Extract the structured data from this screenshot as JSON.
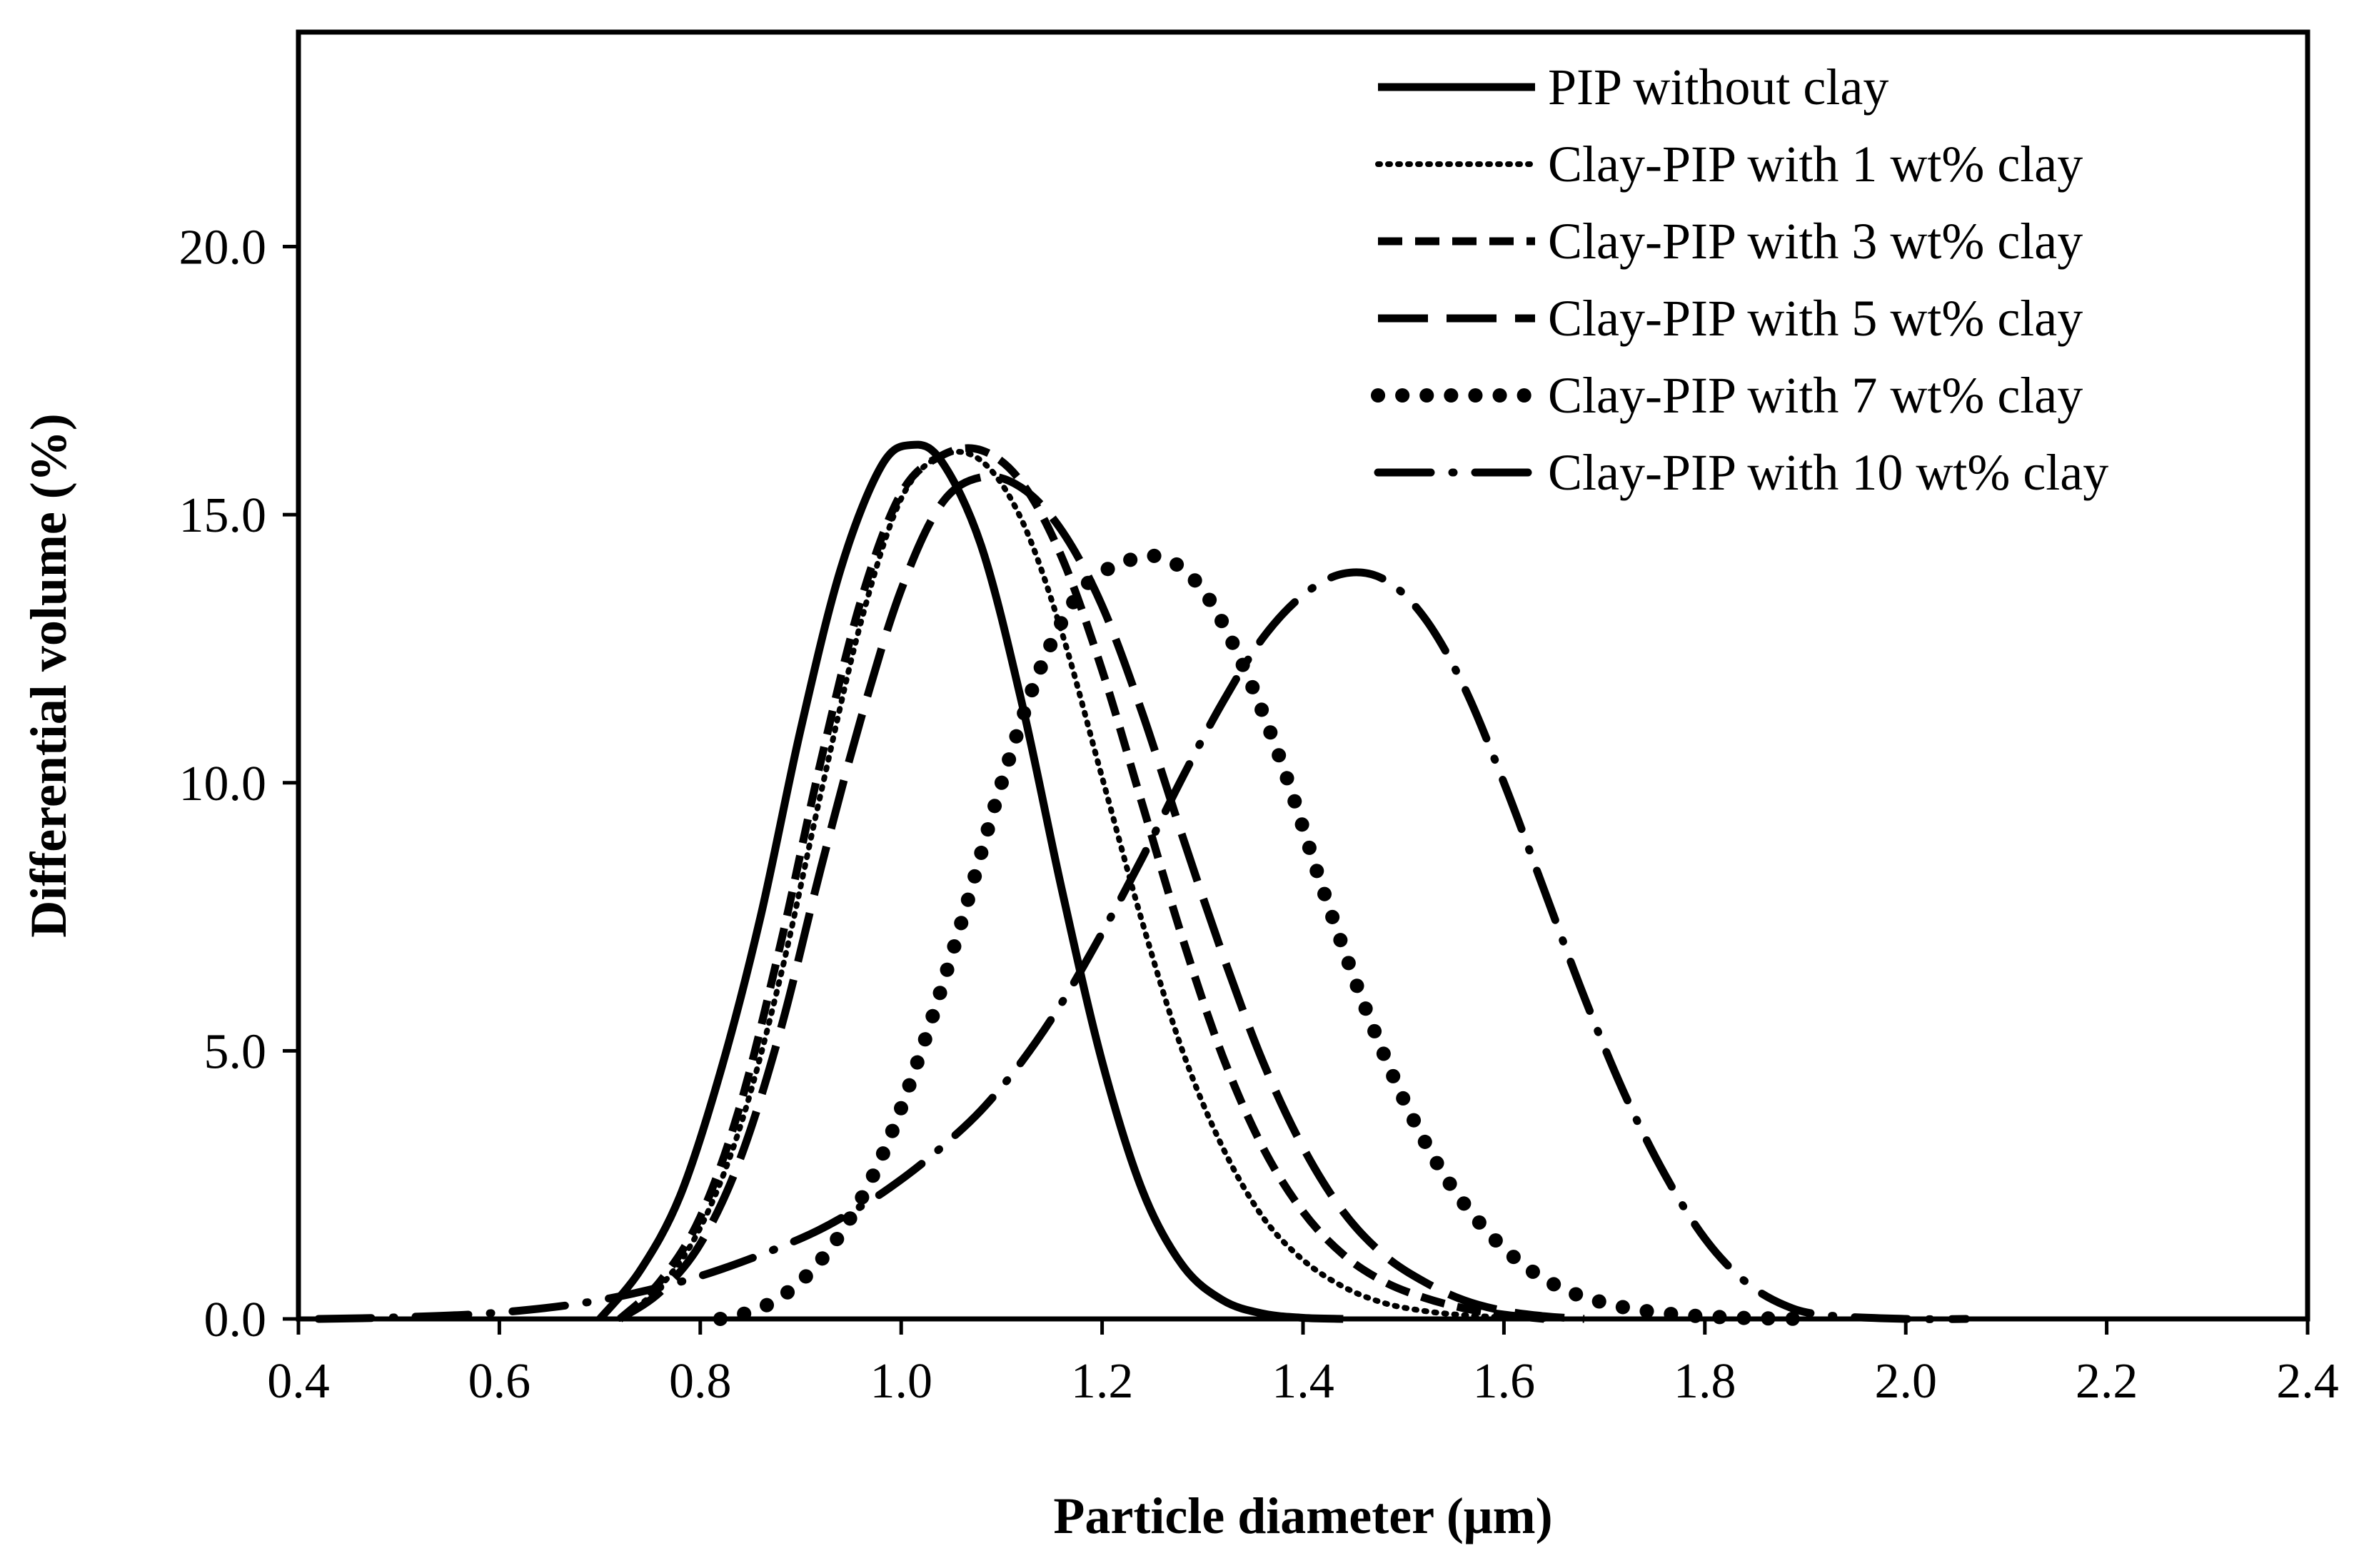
{
  "chart_data": {
    "type": "line",
    "title": "",
    "xlabel": "Particle diameter (μm)",
    "ylabel": "Differential volume (%)",
    "xlim": [
      0.4,
      2.4
    ],
    "ylim": [
      0,
      24
    ],
    "x_ticks": [
      "0.4",
      "0.6",
      "0.8",
      "1.0",
      "1.2",
      "1.4",
      "1.6",
      "1.8",
      "2.0",
      "2.2",
      "2.4"
    ],
    "y_ticks": [
      "0.0",
      "5.0",
      "10.0",
      "15.0",
      "20.0"
    ],
    "legend_position": "top-right",
    "series": [
      {
        "name": "PIP without clay",
        "style": "solid",
        "x": [
          0.7,
          0.74,
          0.78,
          0.82,
          0.86,
          0.9,
          0.94,
          0.98,
          1.01,
          1.04,
          1.08,
          1.12,
          1.16,
          1.2,
          1.24,
          1.28,
          1.32,
          1.36,
          1.4,
          1.44
        ],
        "y": [
          0.0,
          0.9,
          2.3,
          4.6,
          7.5,
          11.0,
          14.0,
          15.9,
          16.3,
          16.0,
          14.4,
          11.5,
          8.0,
          4.8,
          2.4,
          1.0,
          0.35,
          0.1,
          0.02,
          0.0
        ]
      },
      {
        "name": "Clay-PIP with 1 wt% clay",
        "style": "dotted",
        "x": [
          0.72,
          0.76,
          0.8,
          0.84,
          0.88,
          0.92,
          0.96,
          1.0,
          1.04,
          1.08,
          1.12,
          1.16,
          1.2,
          1.24,
          1.28,
          1.32,
          1.36,
          1.4,
          1.44,
          1.48,
          1.52,
          1.56,
          1.6,
          1.64
        ],
        "y": [
          0.0,
          0.6,
          1.7,
          3.6,
          6.4,
          9.8,
          13.0,
          15.3,
          16.1,
          16.0,
          14.9,
          12.8,
          10.1,
          7.4,
          5.0,
          3.2,
          1.9,
          1.1,
          0.6,
          0.3,
          0.15,
          0.07,
          0.03,
          0.0
        ]
      },
      {
        "name": "Clay-PIP with 3 wt% clay",
        "style": "dashed",
        "x": [
          0.72,
          0.76,
          0.8,
          0.84,
          0.88,
          0.92,
          0.96,
          1.0,
          1.04,
          1.08,
          1.12,
          1.16,
          1.2,
          1.24,
          1.28,
          1.32,
          1.36,
          1.4,
          1.44,
          1.48,
          1.52,
          1.56,
          1.6,
          1.64
        ],
        "y": [
          0.0,
          0.7,
          1.9,
          4.0,
          7.0,
          10.4,
          13.4,
          15.4,
          16.1,
          16.2,
          15.6,
          14.2,
          12.1,
          9.6,
          7.1,
          4.9,
          3.2,
          2.0,
          1.2,
          0.7,
          0.4,
          0.2,
          0.08,
          0.0
        ]
      },
      {
        "name": "Clay-PIP with 5 wt% clay",
        "style": "long-dash",
        "x": [
          0.72,
          0.76,
          0.8,
          0.84,
          0.88,
          0.92,
          0.96,
          1.0,
          1.04,
          1.08,
          1.12,
          1.16,
          1.2,
          1.24,
          1.28,
          1.32,
          1.36,
          1.4,
          1.44,
          1.48,
          1.52,
          1.56,
          1.6,
          1.64,
          1.68
        ],
        "y": [
          0.0,
          0.5,
          1.4,
          3.0,
          5.4,
          8.4,
          11.2,
          13.6,
          15.2,
          15.7,
          15.5,
          14.7,
          13.3,
          11.3,
          9.0,
          6.8,
          4.8,
          3.2,
          2.0,
          1.2,
          0.7,
          0.35,
          0.15,
          0.05,
          0.0
        ]
      },
      {
        "name": "Clay-PIP with 7 wt% clay",
        "style": "round-dot",
        "x": [
          0.82,
          0.86,
          0.9,
          0.94,
          0.98,
          1.02,
          1.06,
          1.1,
          1.14,
          1.18,
          1.22,
          1.26,
          1.3,
          1.34,
          1.38,
          1.42,
          1.46,
          1.5,
          1.54,
          1.58,
          1.62,
          1.66,
          1.7,
          1.74,
          1.78,
          1.82,
          1.86,
          1.9
        ],
        "y": [
          0.0,
          0.2,
          0.7,
          1.6,
          3.0,
          5.0,
          7.4,
          10.0,
          12.2,
          13.6,
          14.1,
          14.2,
          13.6,
          12.2,
          10.3,
          8.0,
          5.9,
          4.1,
          2.7,
          1.7,
          1.0,
          0.55,
          0.3,
          0.15,
          0.07,
          0.03,
          0.01,
          0.0
        ]
      },
      {
        "name": "Clay-PIP with 10 wt% clay",
        "style": "dash-dot",
        "x": [
          0.42,
          0.5,
          0.6,
          0.7,
          0.8,
          0.9,
          0.96,
          1.0,
          1.04,
          1.08,
          1.12,
          1.16,
          1.2,
          1.24,
          1.28,
          1.32,
          1.36,
          1.4,
          1.44,
          1.48,
          1.52,
          1.56,
          1.6,
          1.64,
          1.68,
          1.72,
          1.76,
          1.8,
          1.84,
          1.88,
          1.92,
          2.0,
          2.06
        ],
        "y": [
          0.0,
          0.03,
          0.12,
          0.35,
          0.8,
          1.5,
          2.1,
          2.6,
          3.2,
          3.9,
          4.8,
          5.9,
          7.2,
          8.6,
          10.1,
          11.5,
          12.7,
          13.5,
          13.9,
          13.8,
          13.1,
          11.8,
          10.0,
          8.0,
          6.0,
          4.2,
          2.7,
          1.5,
          0.7,
          0.25,
          0.07,
          0.0,
          0.0
        ]
      }
    ]
  }
}
